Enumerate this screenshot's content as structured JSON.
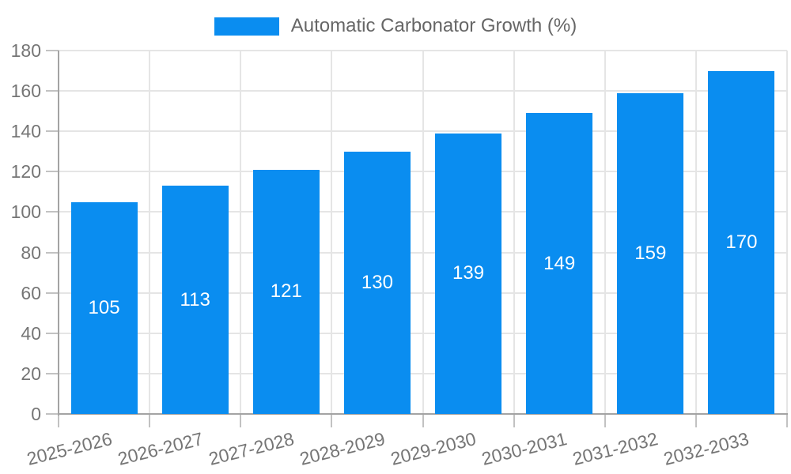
{
  "chart_data": {
    "type": "bar",
    "legend_label": "Automatic Carbonator Growth (%)",
    "categories": [
      "2025-2026",
      "2026-2027",
      "2027-2028",
      "2028-2029",
      "2029-2030",
      "2030-2031",
      "2031-2032",
      "2032-2033"
    ],
    "series": [
      {
        "name": "Automatic Carbonator Growth (%)",
        "values": [
          105,
          113,
          121,
          130,
          139,
          149,
          159,
          170
        ]
      }
    ],
    "value_labels": [
      "105",
      "113",
      "121",
      "130",
      "139",
      "149",
      "159",
      "170"
    ],
    "title": "",
    "xlabel": "",
    "ylabel": "",
    "ylim": [
      0,
      180
    ],
    "ytick_step": 20,
    "yticks": [
      "0",
      "20",
      "40",
      "60",
      "80",
      "100",
      "120",
      "140",
      "160",
      "180"
    ],
    "grid": true,
    "legend_position": "top-center",
    "x_label_rotation_deg": -14,
    "colors": {
      "bar": "#0a8df0",
      "value_label": "#ffffff",
      "axis_text": "#757575",
      "legend_text": "#666666",
      "gridline": "#e5e5e5",
      "axis_line": "#a3a3a3",
      "tick": "#c2c2c2",
      "background": "#ffffff"
    }
  }
}
